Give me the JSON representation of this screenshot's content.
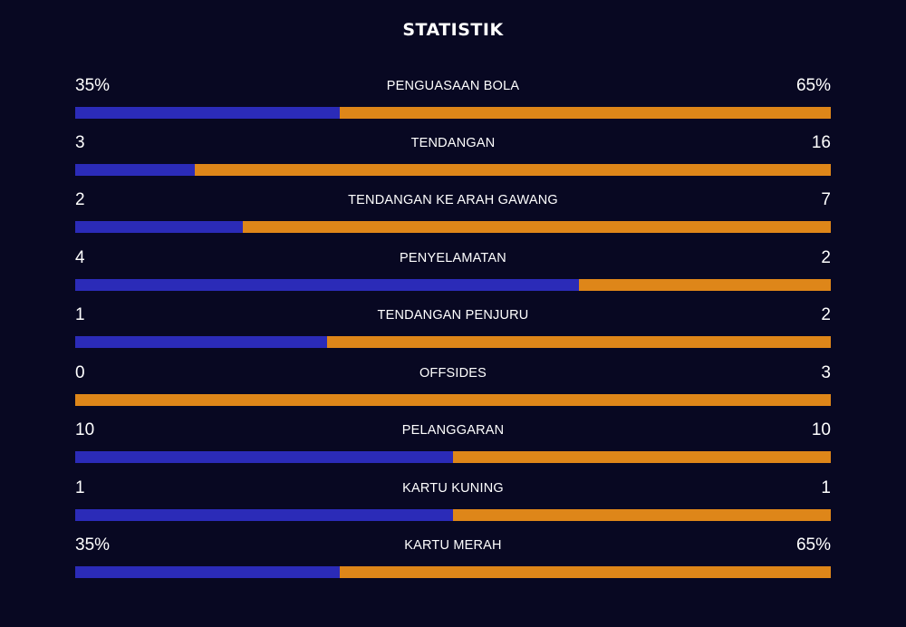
{
  "title": "STATISTIK",
  "colors": {
    "home": "#2b2bb8",
    "away": "#de8619",
    "background": "#080822"
  },
  "stats": [
    {
      "label": "PENGUASAAN BOLA",
      "home": "35%",
      "away": "65%",
      "home_share": 0.35
    },
    {
      "label": "TENDANGAN",
      "home": "3",
      "away": "16",
      "home_share": 0.158
    },
    {
      "label": "TENDANGAN KE ARAH GAWANG",
      "home": "2",
      "away": "7",
      "home_share": 0.222
    },
    {
      "label": "PENYELAMATAN",
      "home": "4",
      "away": "2",
      "home_share": 0.667
    },
    {
      "label": "TENDANGAN PENJURU",
      "home": "1",
      "away": "2",
      "home_share": 0.333
    },
    {
      "label": "OFFSIDES",
      "home": "0",
      "away": "3",
      "home_share": 0.0
    },
    {
      "label": "PELANGGARAN",
      "home": "10",
      "away": "10",
      "home_share": 0.5
    },
    {
      "label": "KARTU KUNING",
      "home": "1",
      "away": "1",
      "home_share": 0.5
    },
    {
      "label": "KARTU MERAH",
      "home": "35%",
      "away": "65%",
      "home_share": 0.35
    }
  ]
}
